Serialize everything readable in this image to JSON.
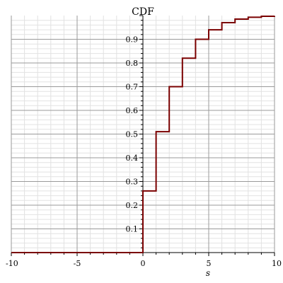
{
  "chart_data": {
    "type": "line",
    "step": "post",
    "title": "CDF",
    "xlabel": "s",
    "ylabel": "",
    "xlim": [
      -10,
      10
    ],
    "ylim": [
      0,
      1
    ],
    "grid": true,
    "x_ticks": [
      -10,
      -5,
      0,
      5,
      10
    ],
    "x_tick_labels": [
      "-10",
      "-5",
      "0",
      "5",
      "10"
    ],
    "y_ticks": [
      0.1,
      0.2,
      0.3,
      0.4,
      0.5,
      0.6,
      0.7,
      0.8,
      0.9
    ],
    "y_tick_labels": [
      "0.1",
      "0.2",
      "0.3",
      "0.4",
      "0.5",
      "0.6",
      "0.7",
      "0.8",
      "0.9"
    ],
    "series": [
      {
        "x": [
          -10,
          0,
          1,
          2,
          3,
          4,
          5,
          6,
          7,
          8,
          9,
          10
        ],
        "y": [
          0,
          0.26,
          0.51,
          0.7,
          0.82,
          0.9,
          0.94,
          0.97,
          0.985,
          0.993,
          0.997,
          0.998
        ],
        "color": "#7a0000"
      }
    ],
    "colors": {
      "grid_major": "#9a9a9a",
      "grid_minor": "#e2e2e2",
      "axis": "#000000",
      "line": "#7a0000"
    }
  }
}
